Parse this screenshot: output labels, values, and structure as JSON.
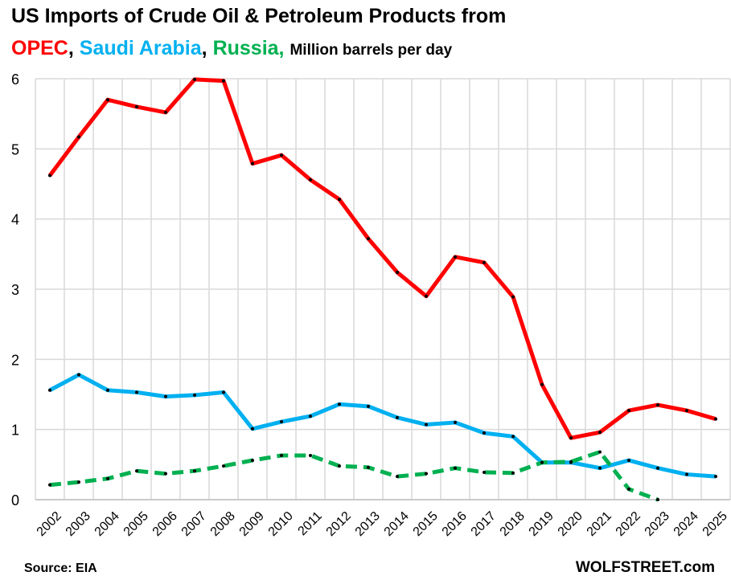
{
  "title_line1": "US Imports of Crude Oil & Petroleum Products from",
  "subtitle": {
    "opec": "OPEC",
    "saudi": "Saudi Arabia",
    "russia": "Russia,",
    "sep": ",",
    "units": "Million barrels per day"
  },
  "source": "Source: EIA",
  "brand": "WOLFSTREET.com",
  "colors": {
    "opec": "#ff0000",
    "saudi": "#00b0f0",
    "russia": "#00b050"
  },
  "chart_data": {
    "type": "line",
    "title": "US Imports of Crude Oil & Petroleum Products from OPEC, Saudi Arabia, Russia, Million barrels per day",
    "xlabel": "",
    "ylabel": "Million barrels per day",
    "ylim": [
      0,
      6
    ],
    "yticks": [
      "0",
      "1",
      "2",
      "3",
      "4",
      "5",
      "6"
    ],
    "grid": true,
    "categories": [
      "2002",
      "2003",
      "2004",
      "2005",
      "2006",
      "2007",
      "2008",
      "2009",
      "2010",
      "2011",
      "2012",
      "2013",
      "2014",
      "2015",
      "2016",
      "2017",
      "2018",
      "2019",
      "2020",
      "2021",
      "2022",
      "2023",
      "2024",
      "2025"
    ],
    "series": [
      {
        "name": "OPEC",
        "color": "#ff0000",
        "dash": false,
        "values": [
          4.62,
          5.17,
          5.7,
          5.6,
          5.52,
          5.99,
          5.97,
          4.79,
          4.91,
          4.56,
          4.28,
          3.72,
          3.24,
          2.9,
          3.46,
          3.38,
          2.89,
          1.64,
          0.88,
          0.96,
          1.27,
          1.35,
          1.27,
          1.15
        ]
      },
      {
        "name": "Saudi Arabia",
        "color": "#00b0f0",
        "dash": false,
        "values": [
          1.56,
          1.78,
          1.56,
          1.53,
          1.47,
          1.49,
          1.53,
          1.01,
          1.11,
          1.19,
          1.36,
          1.33,
          1.17,
          1.07,
          1.1,
          0.95,
          0.9,
          0.53,
          0.53,
          0.45,
          0.56,
          0.45,
          0.36,
          0.33
        ]
      },
      {
        "name": "Russia",
        "color": "#00b050",
        "dash": true,
        "values": [
          0.21,
          0.25,
          0.3,
          0.41,
          0.37,
          0.41,
          0.48,
          0.56,
          0.63,
          0.63,
          0.48,
          0.46,
          0.33,
          0.37,
          0.45,
          0.39,
          0.38,
          0.53,
          0.54,
          0.68,
          0.15,
          0.0,
          null,
          null
        ]
      }
    ]
  }
}
